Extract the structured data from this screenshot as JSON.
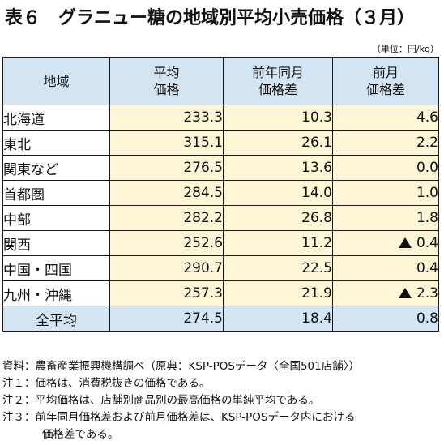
{
  "title": "表６　グラニュー糖の地域別平均小売価格（３月）",
  "unit": "（単位：円/kg）",
  "table": {
    "headers": {
      "region": "地域",
      "avg_line1": "平均",
      "avg_line2": "価格",
      "yoy_line1": "前年同月",
      "yoy_line2": "価格差",
      "mom_line1": "前月",
      "mom_line2": "価格差"
    },
    "rows": [
      {
        "region": "北海道",
        "avg": "233.3",
        "yoy": "10.3",
        "mom": "4.6",
        "mom_negative": false
      },
      {
        "region": "東北",
        "avg": "315.1",
        "yoy": "26.1",
        "mom": "2.2",
        "mom_negative": false
      },
      {
        "region": "関東など",
        "avg": "276.5",
        "yoy": "13.6",
        "mom": "0.0",
        "mom_negative": false
      },
      {
        "region": "首都圏",
        "avg": "284.5",
        "yoy": "14.0",
        "mom": "1.0",
        "mom_negative": false
      },
      {
        "region": "中部",
        "avg": "282.2",
        "yoy": "26.8",
        "mom": "1.8",
        "mom_negative": false
      },
      {
        "region": "関西",
        "avg": "252.6",
        "yoy": "11.2",
        "mom": "0.4",
        "mom_negative": true
      },
      {
        "region": "中国・四国",
        "avg": "290.7",
        "yoy": "22.5",
        "mom": "0.4",
        "mom_negative": false
      },
      {
        "region": "九州・沖縄",
        "avg": "257.3",
        "yoy": "21.9",
        "mom": "2.3",
        "mom_negative": true
      }
    ],
    "total": {
      "region": "全平均",
      "avg": "274.5",
      "yoy": "18.4",
      "mom": "0.8"
    }
  },
  "notes": {
    "source": "資料：農畜産業振興機構調べ（原典：KSP-POSデータ〈全国501店舗〉）",
    "note1": "注１：価格は、消費税抜きの価格である。",
    "note2": "注２：平均価格は、店舗別商品別の最高価格の単純平均である。",
    "note3_line1": "注３：前年同月価格差および前月価格差は、KSP-POSデータ内における",
    "note3_line2": "価格差である。"
  },
  "colors": {
    "header_bg": "#d3e5f3",
    "value_bg": "#fdf6d6",
    "negative_marker": "black-up-triangle"
  }
}
